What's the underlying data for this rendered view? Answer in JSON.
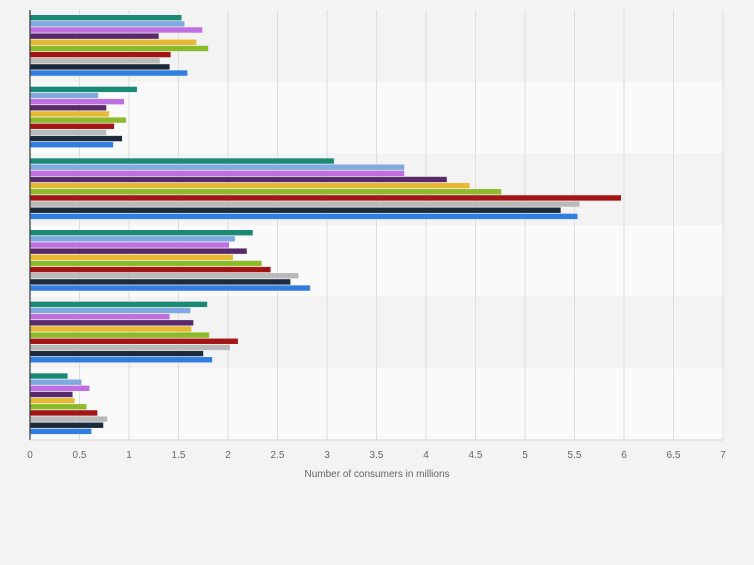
{
  "chart_data": {
    "type": "bar",
    "orientation": "horizontal",
    "title": "",
    "xlabel": "Number of consumers in millions",
    "ylabel": "",
    "xlim": [
      0,
      7
    ],
    "x_ticks": [
      "0",
      "0.5",
      "1",
      "1.5",
      "2",
      "2.5",
      "3",
      "3.5",
      "4",
      "4.5",
      "5",
      "5.5",
      "6",
      "6.5",
      "7"
    ],
    "categories": [
      "",
      "",
      "",
      "",
      "",
      ""
    ],
    "grid": true,
    "legend": "none",
    "series": [
      {
        "name": "",
        "color": "#1a8a74",
        "values": [
          1.53,
          1.08,
          3.07,
          2.25,
          1.79,
          0.38
        ]
      },
      {
        "name": "",
        "color": "#7fa9e0",
        "values": [
          1.56,
          0.69,
          3.78,
          2.07,
          1.62,
          0.52
        ]
      },
      {
        "name": "",
        "color": "#c06fe0",
        "values": [
          1.74,
          0.95,
          3.78,
          2.01,
          1.41,
          0.6
        ]
      },
      {
        "name": "",
        "color": "#582a6b",
        "values": [
          1.3,
          0.77,
          4.21,
          2.19,
          1.65,
          0.43
        ]
      },
      {
        "name": "",
        "color": "#e5b933",
        "values": [
          1.68,
          0.8,
          4.44,
          2.05,
          1.63,
          0.45
        ]
      },
      {
        "name": "",
        "color": "#8cba2a",
        "values": [
          1.8,
          0.97,
          4.76,
          2.34,
          1.81,
          0.57
        ]
      },
      {
        "name": "",
        "color": "#a31414",
        "values": [
          1.42,
          0.85,
          5.97,
          2.43,
          2.1,
          0.68
        ]
      },
      {
        "name": "",
        "color": "#b9b9b9",
        "values": [
          1.31,
          0.77,
          5.55,
          2.71,
          2.02,
          0.78
        ]
      },
      {
        "name": "",
        "color": "#1c2b3c",
        "values": [
          1.41,
          0.93,
          5.36,
          2.63,
          1.75,
          0.74
        ]
      },
      {
        "name": "",
        "color": "#2f7ee0",
        "values": [
          1.59,
          0.84,
          5.53,
          2.83,
          1.84,
          0.62
        ]
      }
    ]
  }
}
